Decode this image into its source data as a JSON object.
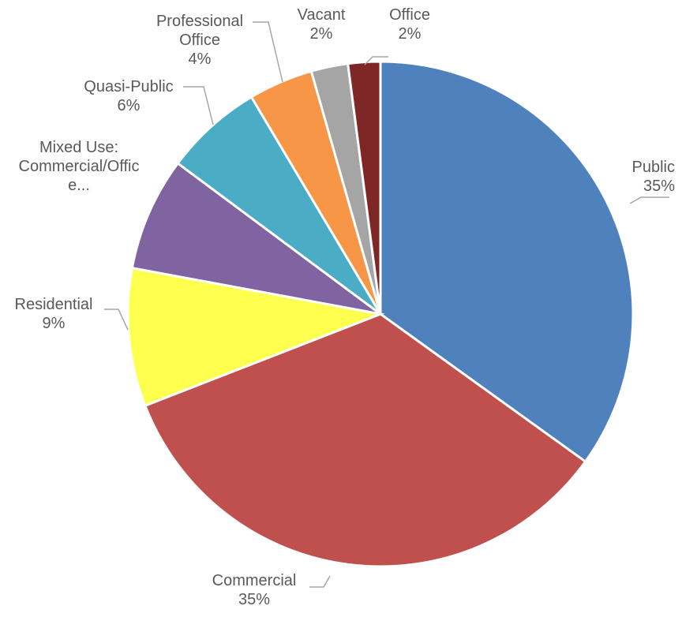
{
  "chart_data": {
    "type": "pie",
    "title": "",
    "start_angle_deg": 0,
    "direction": "clockwise",
    "slices": [
      {
        "label": [
          "Public"
        ],
        "pct_label": "35%",
        "value": 35.6,
        "color": "#4f81bd"
      },
      {
        "label": [
          "Commercial"
        ],
        "pct_label": "35%",
        "value": 34.8,
        "color": "#c0504d"
      },
      {
        "label": [
          "Residential"
        ],
        "pct_label": "9%",
        "value": 9.0,
        "color": "#ffff4f"
      },
      {
        "label": [
          "Mixed Use:",
          "Commercial/Offic",
          "e..."
        ],
        "pct_label": "",
        "value": 7.4,
        "color": "#8064a2"
      },
      {
        "label": [
          "Quasi-Public"
        ],
        "pct_label": "6%",
        "value": 6.4,
        "color": "#4bacc6"
      },
      {
        "label": [
          "Professional",
          "Office"
        ],
        "pct_label": "4%",
        "value": 4.2,
        "color": "#f79646"
      },
      {
        "label": [
          "Vacant"
        ],
        "pct_label": "2%",
        "value": 2.4,
        "color": "#a5a5a5"
      },
      {
        "label": [
          "Office"
        ],
        "pct_label": "2%",
        "value": 2.1,
        "color": "#7f2626"
      }
    ]
  }
}
